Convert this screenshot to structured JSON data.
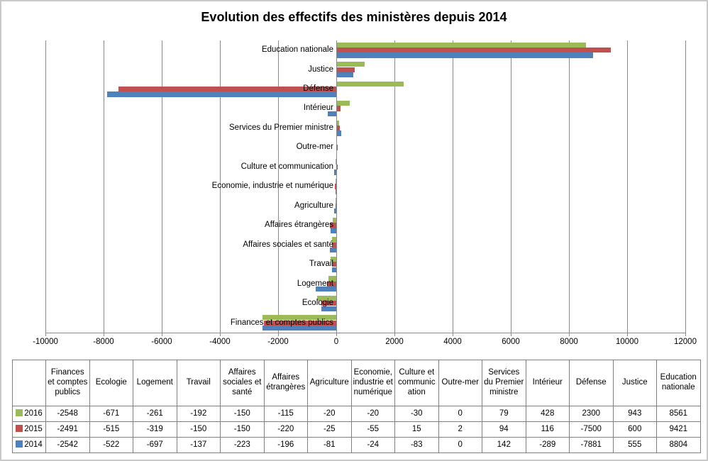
{
  "title": "Evolution des effectifs des ministères depuis 2014",
  "colors": {
    "series_2016": "#9BBB59",
    "series_2015": "#C0504D",
    "series_2014": "#4F81BD",
    "gridline": "#8a8a8a",
    "table_border": "#808080"
  },
  "chart_data": {
    "type": "bar",
    "orientation": "horizontal",
    "title": "Evolution des effectifs des ministères depuis 2014",
    "xlabel": "",
    "ylabel": "",
    "xlim": [
      -10000,
      12000
    ],
    "x_ticks": [
      -10000,
      -8000,
      -6000,
      -4000,
      -2000,
      0,
      2000,
      4000,
      6000,
      8000,
      10000,
      12000
    ],
    "grid": true,
    "legend_position": "table-rows",
    "categories_top_to_bottom": [
      "Education nationale",
      "Justice",
      "Défense",
      "Intérieur",
      "Services du Premier ministre",
      "Outre-mer",
      "Culture et communication",
      "Economie, industrie et numérique",
      "Agriculture",
      "Affaires étrangères",
      "Affaires sociales et santé",
      "Travail",
      "Logement",
      "Ecologie",
      "Finances et comptes publics"
    ],
    "series": [
      {
        "name": "2016",
        "color": "#9BBB59",
        "values": [
          8561,
          943,
          2300,
          428,
          79,
          0,
          -30,
          -20,
          -20,
          -115,
          -150,
          -192,
          -261,
          -671,
          -2548
        ]
      },
      {
        "name": "2015",
        "color": "#C0504D",
        "values": [
          9421,
          600,
          -7500,
          116,
          94,
          2,
          15,
          -55,
          -25,
          -220,
          -150,
          -150,
          -319,
          -515,
          -2491
        ]
      },
      {
        "name": "2014",
        "color": "#4F81BD",
        "values": [
          8804,
          555,
          -7881,
          -289,
          142,
          0,
          -83,
          -24,
          -81,
          -196,
          -223,
          -137,
          -697,
          -522,
          -2542
        ]
      }
    ]
  },
  "table": {
    "columns": [
      "Finances et comptes publics",
      "Ecologie",
      "Logement",
      "Travail",
      "Affaires sociales et santé",
      "Affaires étrangères",
      "Agriculture",
      "Economie, industrie et numérique",
      "Culture et communication",
      "Outre-mer",
      "Services du Premier ministre",
      "Intérieur",
      "Défense",
      "Justice",
      "Education nationale"
    ],
    "rows": [
      {
        "label": "2016",
        "color": "#9BBB59",
        "values": [
          -2548,
          -671,
          -261,
          -192,
          -150,
          -115,
          -20,
          -20,
          -30,
          0,
          79,
          428,
          2300,
          943,
          8561
        ]
      },
      {
        "label": "2015",
        "color": "#C0504D",
        "values": [
          -2491,
          -515,
          -319,
          -150,
          -150,
          -220,
          -25,
          -55,
          15,
          2,
          94,
          116,
          -7500,
          600,
          9421
        ]
      },
      {
        "label": "2014",
        "color": "#4F81BD",
        "values": [
          -2542,
          -522,
          -697,
          -137,
          -223,
          -196,
          -81,
          -24,
          -83,
          0,
          142,
          -289,
          -7881,
          555,
          8804
        ]
      }
    ]
  }
}
